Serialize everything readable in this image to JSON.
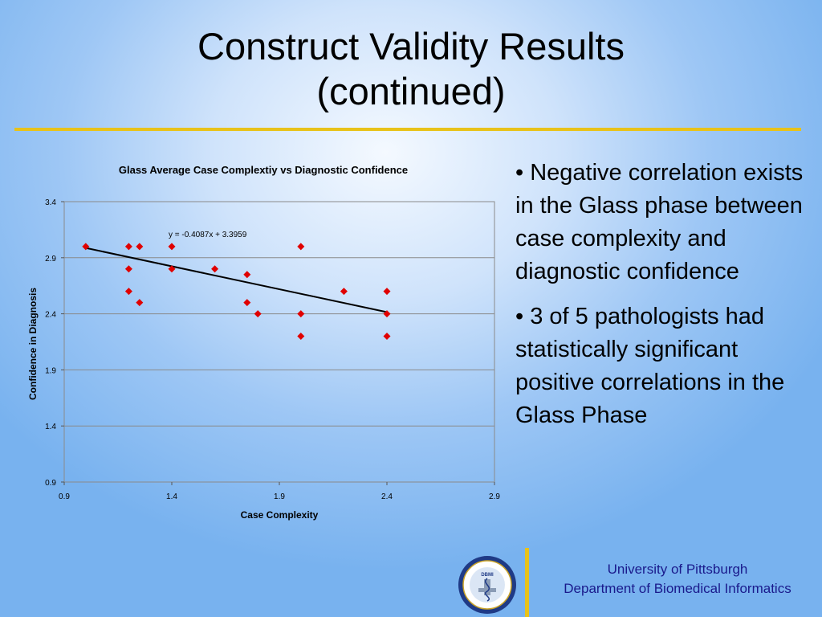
{
  "slide": {
    "title_line1": "Construct Validity Results",
    "title_line2": "(continued)"
  },
  "bullets": [
    "• Negative correlation exists in the Glass phase between case complexity and diagnostic confidence",
    "• 3 of 5 pathologists had statistically significant positive correlations in the Glass Phase"
  ],
  "footer": {
    "university": "University of Pittsburgh",
    "department": "Department of Biomedical Informatics",
    "logo_text": "DBMI",
    "logo_ring_text": "University of Pittsburgh · Department of Biomedical Informatics"
  },
  "colors": {
    "accent": "#e8c21a",
    "marker": "#e00000",
    "footer_text": "#1a1a8c"
  },
  "chart_data": {
    "type": "scatter",
    "title": "Glass Average Case Complextiy vs Diagnostic Confidence",
    "xlabel": "Case Complexity",
    "ylabel": "Confidence in Diagnosis",
    "xlim": [
      0.9,
      2.9
    ],
    "ylim": [
      0.9,
      3.4
    ],
    "xticks": [
      "0.9",
      "1.4",
      "1.9",
      "2.4",
      "2.9"
    ],
    "yticks": [
      "0.9",
      "1.4",
      "1.9",
      "2.4",
      "2.9",
      "3.4"
    ],
    "grid": "horizontal",
    "legend": "none",
    "marker": "diamond",
    "points": [
      {
        "x": 1.0,
        "y": 3.0
      },
      {
        "x": 1.2,
        "y": 3.0
      },
      {
        "x": 1.25,
        "y": 3.0
      },
      {
        "x": 1.4,
        "y": 3.0
      },
      {
        "x": 2.0,
        "y": 3.0
      },
      {
        "x": 1.2,
        "y": 2.8
      },
      {
        "x": 1.4,
        "y": 2.8
      },
      {
        "x": 1.6,
        "y": 2.8
      },
      {
        "x": 1.75,
        "y": 2.75
      },
      {
        "x": 1.2,
        "y": 2.6
      },
      {
        "x": 2.2,
        "y": 2.6
      },
      {
        "x": 2.4,
        "y": 2.6
      },
      {
        "x": 1.25,
        "y": 2.5
      },
      {
        "x": 1.75,
        "y": 2.5
      },
      {
        "x": 1.8,
        "y": 2.4
      },
      {
        "x": 2.0,
        "y": 2.4
      },
      {
        "x": 2.4,
        "y": 2.4
      },
      {
        "x": 2.0,
        "y": 2.2
      },
      {
        "x": 2.4,
        "y": 2.2
      }
    ],
    "trendline": {
      "slope": -0.4087,
      "intercept": 3.3959,
      "x_range": [
        1.0,
        2.4
      ],
      "equation": "y = -0.4087x + 3.3959"
    }
  }
}
